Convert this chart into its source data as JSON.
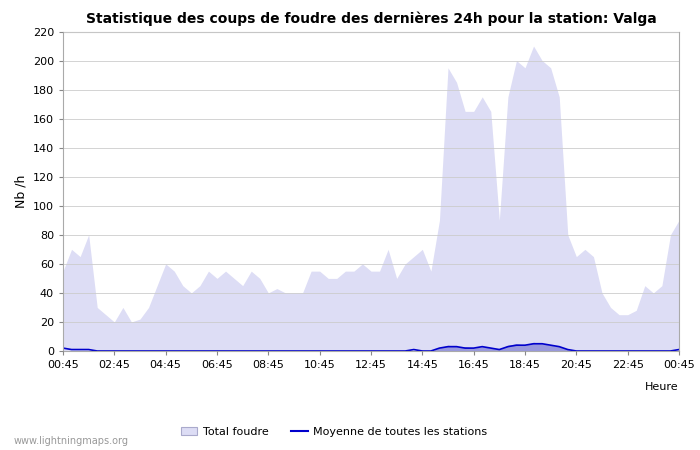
{
  "title": "Statistique des coups de foudre des dernières 24h pour la station: Valga",
  "xlabel": "Heure",
  "ylabel": "Nb /h",
  "ylim": [
    0,
    220
  ],
  "yticks": [
    0,
    20,
    40,
    60,
    80,
    100,
    120,
    140,
    160,
    180,
    200,
    220
  ],
  "xtick_labels": [
    "00:45",
    "02:45",
    "04:45",
    "06:45",
    "08:45",
    "10:45",
    "12:45",
    "14:45",
    "16:45",
    "18:45",
    "20:45",
    "22:45",
    "00:45"
  ],
  "watermark": "www.lightningmaps.org",
  "bg_color": "#ffffff",
  "grid_color": "#cccccc",
  "total_foudre_color": "#ddddf5",
  "valga_color": "#9999dd",
  "moyenne_color": "#0000cc",
  "total_foudre_values": [
    55,
    70,
    65,
    80,
    30,
    25,
    20,
    30,
    20,
    22,
    30,
    45,
    60,
    55,
    45,
    40,
    45,
    55,
    50,
    55,
    50,
    45,
    55,
    50,
    40,
    43,
    40,
    40,
    40,
    55,
    55,
    50,
    50,
    55,
    55,
    60,
    55,
    55,
    70,
    50,
    60,
    65,
    70,
    55,
    90,
    195,
    185,
    165,
    165,
    175,
    165,
    90,
    175,
    200,
    195,
    210,
    200,
    195,
    175,
    80,
    65,
    70,
    65,
    40,
    30,
    25,
    25,
    28,
    45,
    40,
    45,
    80,
    90
  ],
  "valga_values": [
    0,
    0,
    0,
    0,
    0,
    0,
    0,
    0,
    0,
    0,
    0,
    0,
    0,
    0,
    0,
    0,
    0,
    0,
    0,
    0,
    0,
    0,
    0,
    0,
    0,
    0,
    0,
    0,
    0,
    0,
    0,
    0,
    0,
    0,
    0,
    0,
    0,
    0,
    0,
    0,
    0,
    0,
    0,
    0,
    2,
    4,
    3,
    3,
    2,
    3,
    2,
    1,
    4,
    5,
    4,
    6,
    5,
    4,
    3,
    1,
    0,
    0,
    0,
    0,
    0,
    0,
    0,
    0,
    0,
    0,
    0,
    0,
    0
  ],
  "moyenne_values": [
    2,
    1,
    1,
    1,
    0,
    0,
    0,
    0,
    0,
    0,
    0,
    0,
    0,
    0,
    0,
    0,
    0,
    0,
    0,
    0,
    0,
    0,
    0,
    0,
    0,
    0,
    0,
    0,
    0,
    0,
    0,
    0,
    0,
    0,
    0,
    0,
    0,
    0,
    0,
    0,
    0,
    1,
    0,
    0,
    2,
    3,
    3,
    2,
    2,
    3,
    2,
    1,
    3,
    4,
    4,
    5,
    5,
    4,
    3,
    1,
    0,
    0,
    0,
    0,
    0,
    0,
    0,
    0,
    0,
    0,
    0,
    0,
    1
  ],
  "n_points": 73,
  "title_fontsize": 10,
  "axis_fontsize": 8,
  "watermark_fontsize": 7,
  "legend_fontsize": 8
}
